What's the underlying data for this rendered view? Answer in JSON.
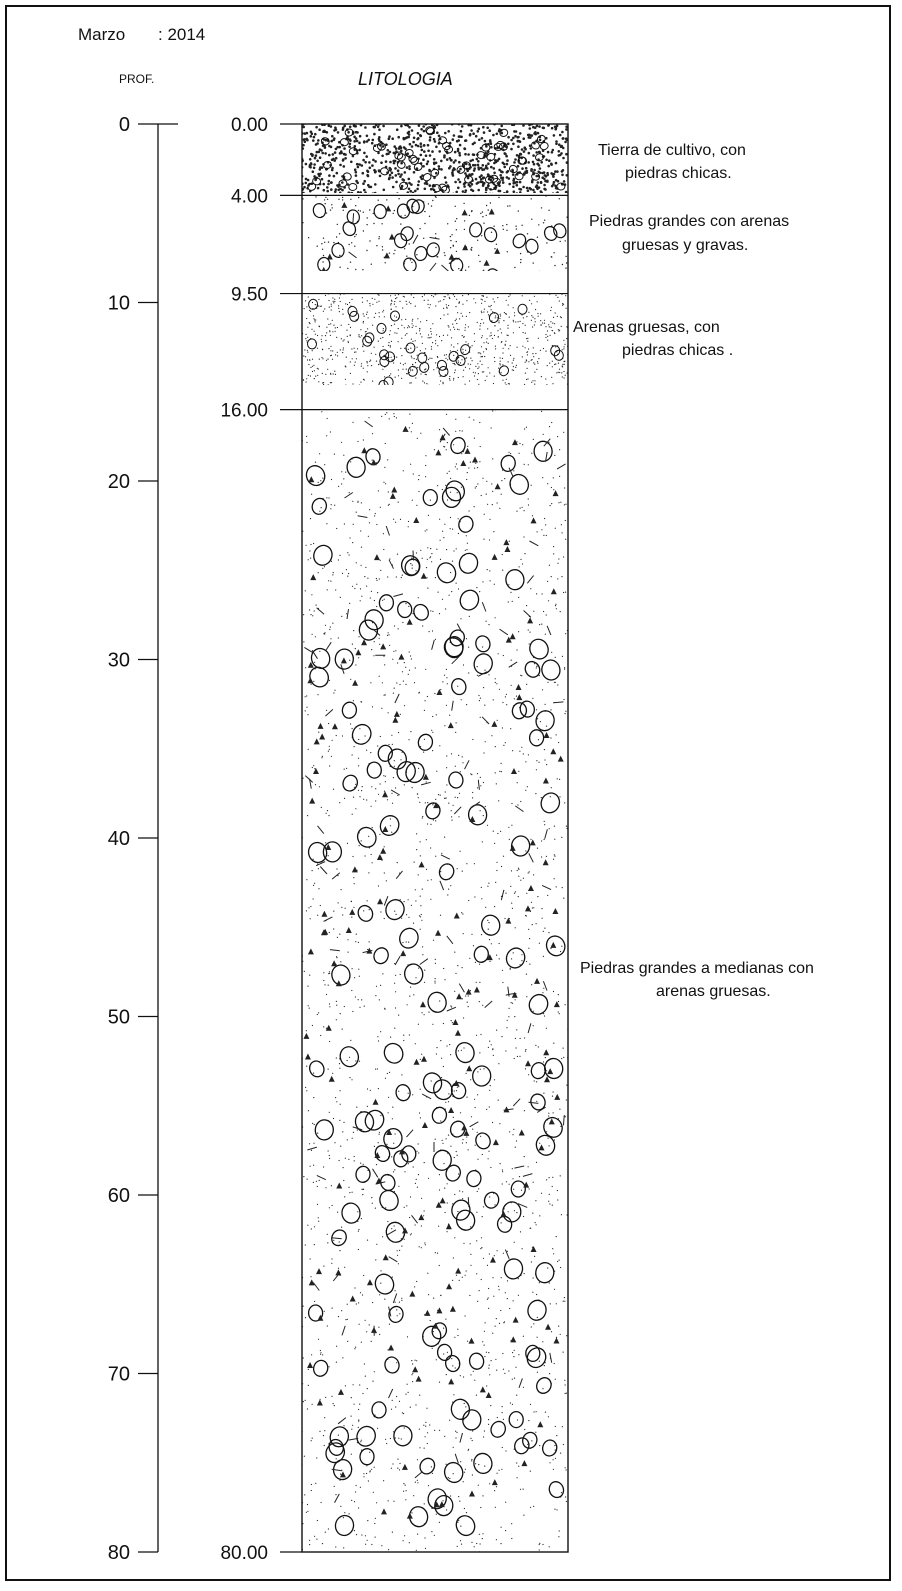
{
  "header": {
    "month": "Marzo",
    "year": ": 2014",
    "prof_label": "PROF.",
    "litologia_label": "LITOLOGIA"
  },
  "depth_axis": {
    "ticks": [
      0,
      10,
      20,
      30,
      40,
      50,
      60,
      70,
      80
    ],
    "min": 0,
    "max": 80
  },
  "boundaries": [
    {
      "depth": 0,
      "label": "0.00"
    },
    {
      "depth": 4,
      "label": "4.00"
    },
    {
      "depth": 9.5,
      "label": "9.50"
    },
    {
      "depth": 16,
      "label": "16.00"
    },
    {
      "depth": 80,
      "label": "80.00"
    }
  ],
  "layers": [
    {
      "from": 0,
      "to": 4,
      "pattern": "dense-gravel",
      "desc": [
        "Tierra de cultivo, con",
        "piedras chicas."
      ]
    },
    {
      "from": 4,
      "to": 9.5,
      "pattern": "large-stones-sand",
      "desc": [
        "Piedras grandes con arenas",
        "gruesas y gravas."
      ]
    },
    {
      "from": 9.5,
      "to": 16,
      "pattern": "coarse-sand-small-stones",
      "desc": [
        "Arenas gruesas, con",
        "piedras chicas ."
      ]
    },
    {
      "from": 16,
      "to": 80,
      "pattern": "large-medium-stones-sand",
      "desc": [
        "Piedras grandes a medianas con",
        "arenas gruesas."
      ]
    }
  ]
}
